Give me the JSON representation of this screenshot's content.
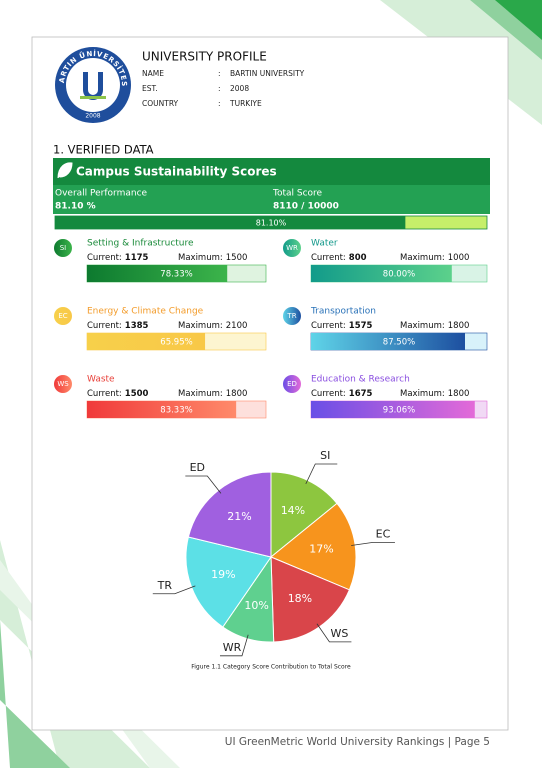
{
  "profile": {
    "title": "UNIVERSITY PROFILE",
    "logo_ring_text": "BARTIN ÜNİVERSİTESİ",
    "logo_year": "2008",
    "separator": ":",
    "fields": [
      [
        "NAME",
        "BARTIN UNIVERSITY"
      ],
      [
        "EST.",
        "2008"
      ],
      [
        "COUNTRY",
        "TURKIYE"
      ]
    ]
  },
  "section_title": "1. VERIFIED DATA",
  "summary": {
    "title": "Campus Sustainability Scores",
    "overall_label": "Overall Performance",
    "overall_value": "81.10 %",
    "total_label": "Total Score",
    "total_value": "8110 / 10000",
    "percent": 81.1,
    "percent_label": "81.10%"
  },
  "score_labels": {
    "current": "Current:",
    "maximum": "Maximum:"
  },
  "scores": [
    {
      "code": "SI",
      "name": "Setting & Infrastructure",
      "current": 1175,
      "maximum": 1500,
      "percent": 78.33,
      "percent_label": "78.33%",
      "color": "#1a8a3a",
      "bar_from": "#0d7a2f",
      "bar_to": "#3cb44b",
      "track": "#dff3e0"
    },
    {
      "code": "WR",
      "name": "Water",
      "current": 800,
      "maximum": 1000,
      "percent": 80.0,
      "percent_label": "80.00%",
      "color": "#12988a",
      "bar_from": "#129b8a",
      "bar_to": "#5cd18b",
      "track": "#d9f3e6"
    },
    {
      "code": "EC",
      "name": "Energy & Climate Change",
      "current": 1385,
      "maximum": 2100,
      "percent": 65.95,
      "percent_label": "65.95%",
      "color": "#f39c2b",
      "bar_from": "#f7d04a",
      "bar_to": "#f8c848",
      "track": "#fdf5d0"
    },
    {
      "code": "TR",
      "name": "Transportation",
      "current": 1575,
      "maximum": 1800,
      "percent": 87.5,
      "percent_label": "87.50%",
      "color": "#2a72b8",
      "bar_from": "#5fd4e8",
      "bar_to": "#1d4fa0",
      "track": "#d8f2fa"
    },
    {
      "code": "WS",
      "name": "Waste",
      "current": 1500,
      "maximum": 1800,
      "percent": 83.33,
      "percent_label": "83.33%",
      "color": "#e8413a",
      "bar_from": "#f03a3a",
      "bar_to": "#ff8a6a",
      "track": "#fde0dc"
    },
    {
      "code": "ED",
      "name": "Education & Research",
      "current": 1675,
      "maximum": 1800,
      "percent": 93.06,
      "percent_label": "93.06%",
      "color": "#8a4fe0",
      "bar_from": "#6b4ee6",
      "bar_to": "#e36ad8",
      "track": "#f1d9f5"
    }
  ],
  "chart_data": {
    "type": "pie",
    "caption": "Figure 1.1 Category Score Contribution to Total Score",
    "categories": [
      "SI",
      "EC",
      "WS",
      "WR",
      "TR",
      "ED"
    ],
    "values": [
      14,
      17,
      18,
      10,
      19,
      21
    ],
    "value_labels": [
      "14%",
      "17%",
      "18%",
      "10%",
      "19%",
      "21%"
    ],
    "colors": [
      "#8dc63f",
      "#f7941d",
      "#d9454a",
      "#5fd08f",
      "#5ce0e6",
      "#a060e0"
    ]
  },
  "footer": "UI GreenMetric World University Rankings | Page 5"
}
